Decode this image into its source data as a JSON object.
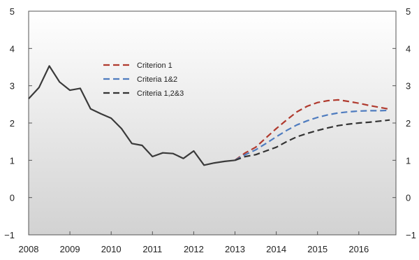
{
  "chart_data": {
    "type": "line",
    "title": "",
    "xlabel": "",
    "ylabel": "",
    "xlim": [
      2008,
      2016.9
    ],
    "ylim": [
      -1,
      5
    ],
    "x_ticks": [
      "2008",
      "2009",
      "2010",
      "2011",
      "2012",
      "2013",
      "2014",
      "2015",
      "2016"
    ],
    "y_ticks": [
      "−1",
      "0",
      "1",
      "2",
      "3",
      "4",
      "5"
    ],
    "y_tick_values": [
      -1,
      0,
      1,
      2,
      3,
      4,
      5
    ],
    "legend_position": "upper-left",
    "background": "light-gray-gradient",
    "grid": false,
    "series": [
      {
        "name": "",
        "style": "solid",
        "color": "#3a3a3a",
        "points": [
          [
            2008.0,
            2.65
          ],
          [
            2008.25,
            2.95
          ],
          [
            2008.5,
            3.53
          ],
          [
            2008.75,
            3.1
          ],
          [
            2009.0,
            2.88
          ],
          [
            2009.25,
            2.93
          ],
          [
            2009.5,
            2.38
          ],
          [
            2009.75,
            2.25
          ],
          [
            2010.0,
            2.13
          ],
          [
            2010.25,
            1.85
          ],
          [
            2010.5,
            1.45
          ],
          [
            2010.75,
            1.4
          ],
          [
            2011.0,
            1.1
          ],
          [
            2011.25,
            1.2
          ],
          [
            2011.5,
            1.18
          ],
          [
            2011.75,
            1.05
          ],
          [
            2012.0,
            1.25
          ],
          [
            2012.25,
            0.87
          ],
          [
            2012.5,
            0.93
          ],
          [
            2012.75,
            0.97
          ],
          [
            2013.0,
            1.0
          ]
        ]
      },
      {
        "name": "Criterion 1",
        "style": "dashed",
        "color": "#b03a2e",
        "points": [
          [
            2013.0,
            1.0
          ],
          [
            2013.25,
            1.2
          ],
          [
            2013.5,
            1.35
          ],
          [
            2013.75,
            1.6
          ],
          [
            2014.0,
            1.85
          ],
          [
            2014.25,
            2.08
          ],
          [
            2014.5,
            2.3
          ],
          [
            2014.75,
            2.45
          ],
          [
            2015.0,
            2.55
          ],
          [
            2015.25,
            2.6
          ],
          [
            2015.5,
            2.62
          ],
          [
            2015.75,
            2.58
          ],
          [
            2016.0,
            2.53
          ],
          [
            2016.25,
            2.47
          ],
          [
            2016.5,
            2.42
          ],
          [
            2016.75,
            2.37
          ]
        ]
      },
      {
        "name": "Criteria 1&2",
        "style": "dashed",
        "color": "#4f7cbf",
        "points": [
          [
            2013.0,
            1.0
          ],
          [
            2013.25,
            1.15
          ],
          [
            2013.5,
            1.28
          ],
          [
            2013.75,
            1.45
          ],
          [
            2014.0,
            1.63
          ],
          [
            2014.25,
            1.8
          ],
          [
            2014.5,
            1.95
          ],
          [
            2014.75,
            2.06
          ],
          [
            2015.0,
            2.15
          ],
          [
            2015.25,
            2.22
          ],
          [
            2015.5,
            2.27
          ],
          [
            2015.75,
            2.3
          ],
          [
            2016.0,
            2.32
          ],
          [
            2016.25,
            2.33
          ],
          [
            2016.5,
            2.33
          ],
          [
            2016.75,
            2.34
          ]
        ]
      },
      {
        "name": "Criteria 1,2&3",
        "style": "dashed",
        "color": "#333333",
        "points": [
          [
            2013.0,
            1.0
          ],
          [
            2013.25,
            1.1
          ],
          [
            2013.5,
            1.15
          ],
          [
            2013.75,
            1.25
          ],
          [
            2014.0,
            1.35
          ],
          [
            2014.25,
            1.5
          ],
          [
            2014.5,
            1.63
          ],
          [
            2014.75,
            1.72
          ],
          [
            2015.0,
            1.8
          ],
          [
            2015.25,
            1.87
          ],
          [
            2015.5,
            1.93
          ],
          [
            2015.75,
            1.97
          ],
          [
            2016.0,
            2.0
          ],
          [
            2016.25,
            2.02
          ],
          [
            2016.5,
            2.05
          ],
          [
            2016.75,
            2.08
          ]
        ]
      }
    ]
  }
}
